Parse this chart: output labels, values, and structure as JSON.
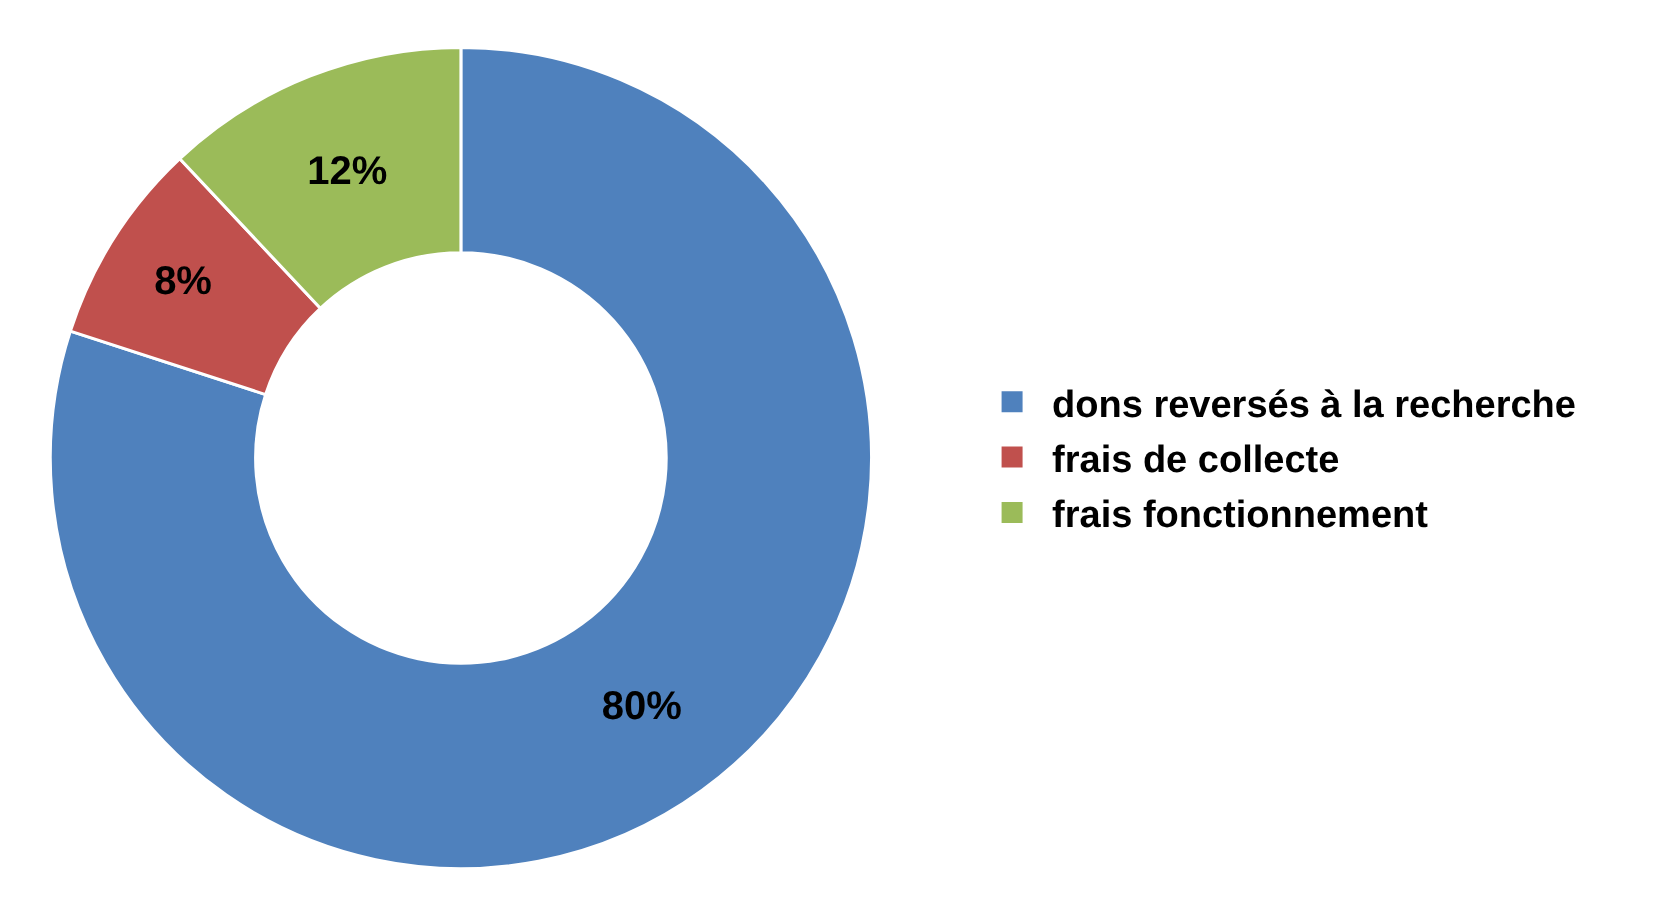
{
  "chart_data": {
    "type": "donut",
    "categories": [
      "dons reversés à la recherche",
      "frais de collecte",
      "frais fonctionnement"
    ],
    "values": [
      80,
      8,
      12
    ],
    "colors": [
      "#4f81bd",
      "#c0504d",
      "#9bbb59"
    ],
    "value_labels": [
      "80%",
      "8%",
      "12%"
    ],
    "legend": "right"
  }
}
